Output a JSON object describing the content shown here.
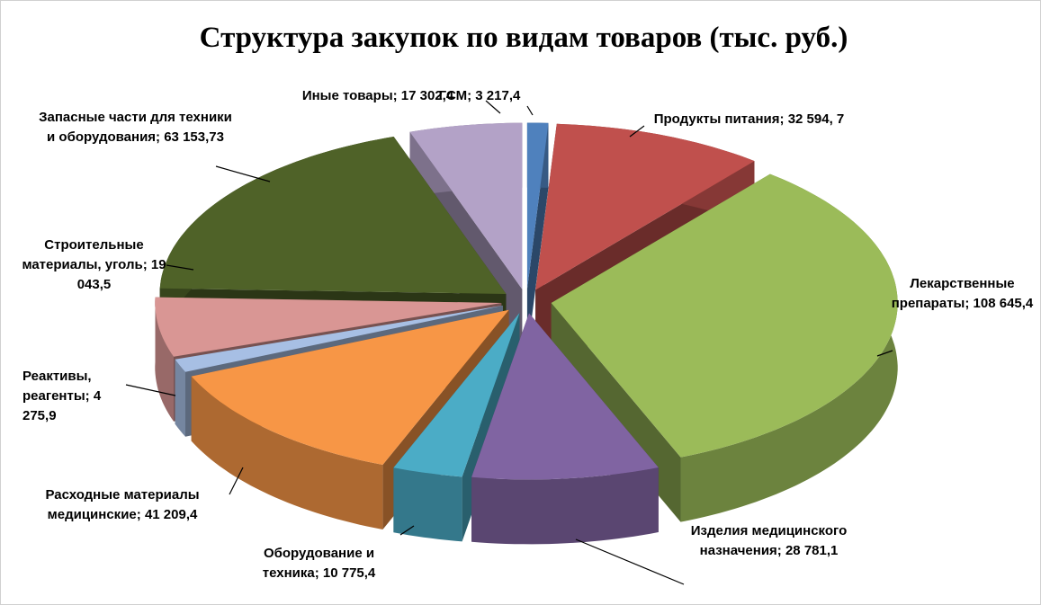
{
  "chart_data": {
    "type": "pie3d",
    "title": "Структура закупок по видам товаров (тыс. руб.)",
    "label_separator": "; ",
    "categories": [
      "ГСМ",
      "Продукты питания",
      "Лекарственные препараты",
      "Изделия медицинского назначения",
      "Оборудование и техника",
      "Расходные материалы медицинские",
      "Реактивы, реагенты",
      "Строительные материалы, уголь",
      "Запасные части для техники и оборудования",
      "Иные товары"
    ],
    "values": [
      3217.4,
      32594.7,
      108645.4,
      28781.1,
      10775.4,
      41209.4,
      4275.9,
      19043.5,
      63153.73,
      17302.4
    ],
    "value_labels": [
      "3 217,4",
      "32 594, 7",
      "108 645,4",
      "28 781,1",
      "10 775,4",
      "41 209,4",
      "4 275,9",
      "19 043,5",
      "63 153,73",
      "17 302,4"
    ],
    "colors": [
      "#4f81bd",
      "#c0504d",
      "#9bbb59",
      "#8064a2",
      "#4bacc6",
      "#f79646",
      "#a7bfe4",
      "#d99694",
      "#4f6228",
      "#b3a2c7"
    ]
  }
}
